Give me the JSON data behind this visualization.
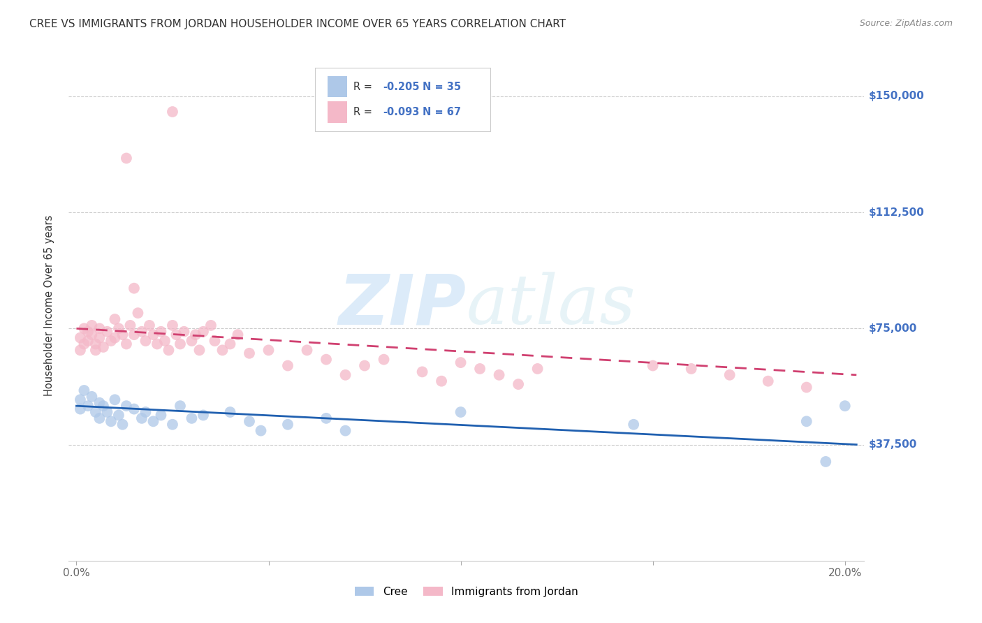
{
  "title": "CREE VS IMMIGRANTS FROM JORDAN HOUSEHOLDER INCOME OVER 65 YEARS CORRELATION CHART",
  "source": "Source: ZipAtlas.com",
  "ylabel": "Householder Income Over 65 years",
  "xlabel_ticks": [
    "0.0%",
    "",
    "",
    "",
    "20.0%"
  ],
  "xlabel_values": [
    0.0,
    0.05,
    0.1,
    0.15,
    0.2
  ],
  "ytick_labels": [
    "$37,500",
    "$75,000",
    "$112,500",
    "$150,000"
  ],
  "ytick_values": [
    37500,
    75000,
    112500,
    150000
  ],
  "ylim": [
    0,
    165000
  ],
  "xlim": [
    -0.002,
    0.205
  ],
  "cree_color": "#aec8e8",
  "jordan_color": "#f4b8c8",
  "cree_line_color": "#2060b0",
  "jordan_line_color": "#d04070",
  "watermark_zip": "ZIP",
  "watermark_atlas": "atlas",
  "cree_scatter_x": [
    0.001,
    0.001,
    0.002,
    0.003,
    0.004,
    0.005,
    0.006,
    0.006,
    0.007,
    0.008,
    0.009,
    0.01,
    0.011,
    0.012,
    0.013,
    0.015,
    0.017,
    0.018,
    0.02,
    0.022,
    0.025,
    0.027,
    0.03,
    0.033,
    0.04,
    0.045,
    0.048,
    0.055,
    0.065,
    0.07,
    0.1,
    0.145,
    0.19,
    0.195,
    0.2
  ],
  "cree_scatter_y": [
    49000,
    52000,
    55000,
    50000,
    53000,
    48000,
    51000,
    46000,
    50000,
    48000,
    45000,
    52000,
    47000,
    44000,
    50000,
    49000,
    46000,
    48000,
    45000,
    47000,
    44000,
    50000,
    46000,
    47000,
    48000,
    45000,
    42000,
    44000,
    46000,
    42000,
    48000,
    44000,
    45000,
    32000,
    50000
  ],
  "jordan_scatter_x": [
    0.001,
    0.001,
    0.002,
    0.002,
    0.003,
    0.003,
    0.004,
    0.004,
    0.005,
    0.005,
    0.006,
    0.006,
    0.007,
    0.008,
    0.009,
    0.01,
    0.01,
    0.011,
    0.012,
    0.013,
    0.014,
    0.015,
    0.015,
    0.016,
    0.017,
    0.018,
    0.019,
    0.02,
    0.021,
    0.022,
    0.023,
    0.024,
    0.025,
    0.026,
    0.027,
    0.028,
    0.03,
    0.031,
    0.032,
    0.033,
    0.035,
    0.036,
    0.038,
    0.04,
    0.042,
    0.045,
    0.05,
    0.055,
    0.06,
    0.065,
    0.07,
    0.075,
    0.08,
    0.09,
    0.095,
    0.1,
    0.105,
    0.11,
    0.115,
    0.12,
    0.013,
    0.025,
    0.15,
    0.16,
    0.17,
    0.18,
    0.19
  ],
  "jordan_scatter_y": [
    72000,
    68000,
    75000,
    70000,
    74000,
    71000,
    76000,
    73000,
    70000,
    68000,
    75000,
    72000,
    69000,
    74000,
    71000,
    78000,
    72000,
    75000,
    73000,
    70000,
    76000,
    88000,
    73000,
    80000,
    74000,
    71000,
    76000,
    73000,
    70000,
    74000,
    71000,
    68000,
    76000,
    73000,
    70000,
    74000,
    71000,
    73000,
    68000,
    74000,
    76000,
    71000,
    68000,
    70000,
    73000,
    67000,
    68000,
    63000,
    68000,
    65000,
    60000,
    63000,
    65000,
    61000,
    58000,
    64000,
    62000,
    60000,
    57000,
    62000,
    130000,
    145000,
    63000,
    62000,
    60000,
    58000,
    56000
  ]
}
